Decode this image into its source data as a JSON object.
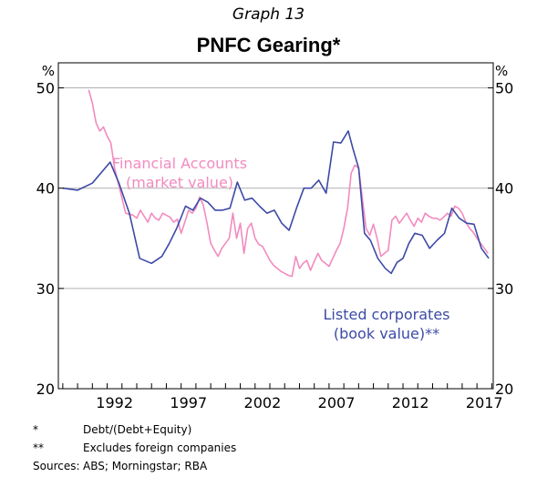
{
  "header": {
    "graph_label": "Graph 13",
    "title": "PNFC Gearing*"
  },
  "chart_data": {
    "type": "line",
    "title": "PNFC Gearing*",
    "y_unit_left": "%",
    "y_unit_right": "%",
    "ylim": [
      20,
      52.5
    ],
    "yticks": [
      20,
      30,
      40,
      50
    ],
    "xlim": [
      1988.7,
      2018.1
    ],
    "xticks": [
      1992,
      1997,
      2002,
      2007,
      2012,
      2017
    ],
    "grid": true,
    "annotations": [
      {
        "lines": [
          "Financial Accounts",
          "(market value)"
        ],
        "color": "#f28bbf"
      },
      {
        "lines": [
          "Listed corporates",
          "(book value)**"
        ],
        "color": "#3d4aa6"
      }
    ],
    "series": [
      {
        "name": "Financial Accounts (market value)",
        "color": "#f28bbf",
        "x": [
          1990.75,
          1991.0,
          1991.25,
          1991.5,
          1991.75,
          1992.0,
          1992.25,
          1992.5,
          1992.75,
          1993.0,
          1993.25,
          1993.5,
          1993.75,
          1994.0,
          1994.25,
          1994.5,
          1994.75,
          1995.0,
          1995.25,
          1995.5,
          1995.75,
          1996.0,
          1996.25,
          1996.5,
          1996.75,
          1997.0,
          1997.25,
          1997.5,
          1997.75,
          1998.0,
          1998.25,
          1998.5,
          1998.75,
          1999.0,
          1999.25,
          1999.5,
          1999.75,
          2000.0,
          2000.25,
          2000.5,
          2000.75,
          2001.0,
          2001.25,
          2001.5,
          2001.75,
          2002.0,
          2002.25,
          2002.5,
          2002.75,
          2003.0,
          2003.25,
          2003.5,
          2003.75,
          2004.0,
          2004.25,
          2004.5,
          2004.75,
          2005.0,
          2005.25,
          2005.5,
          2005.75,
          2006.0,
          2006.25,
          2006.5,
          2006.75,
          2007.0,
          2007.25,
          2007.5,
          2007.75,
          2008.0,
          2008.25,
          2008.5,
          2008.75,
          2009.0,
          2009.25,
          2009.5,
          2009.75,
          2010.0,
          2010.25,
          2010.5,
          2010.75,
          2011.0,
          2011.25,
          2011.5,
          2011.75,
          2012.0,
          2012.25,
          2012.5,
          2012.75,
          2013.0,
          2013.25,
          2013.5,
          2013.75,
          2014.0,
          2014.25,
          2014.5,
          2014.75,
          2015.0,
          2015.25,
          2015.5,
          2015.75,
          2016.0,
          2016.25,
          2016.5,
          2016.75,
          2017.0,
          2017.25,
          2017.5,
          2017.75
        ],
        "values": [
          49.8,
          48.5,
          46.5,
          45.7,
          46.1,
          45.2,
          44.5,
          42.0,
          40.5,
          39.0,
          37.5,
          37.4,
          37.3,
          37.0,
          37.8,
          37.2,
          36.6,
          37.5,
          37.0,
          36.8,
          37.5,
          37.3,
          37.1,
          36.6,
          36.9,
          35.5,
          36.6,
          37.8,
          37.5,
          38.0,
          39.1,
          38.3,
          36.5,
          34.5,
          33.8,
          33.2,
          34.0,
          34.5,
          35.0,
          37.5,
          35.0,
          36.5,
          33.5,
          36.0,
          36.5,
          35.0,
          34.4,
          34.2,
          33.5,
          32.8,
          32.3,
          32.0,
          31.7,
          31.5,
          31.3,
          31.2,
          33.2,
          32.0,
          32.5,
          32.8,
          31.8,
          32.7,
          33.5,
          32.8,
          32.5,
          32.2,
          33.0,
          33.8,
          34.5,
          36.0,
          38.0,
          41.5,
          42.3,
          42.0,
          39.0,
          36.0,
          35.3,
          36.4,
          35.0,
          33.2,
          33.5,
          33.8,
          36.8,
          37.2,
          36.5,
          37.0,
          37.5,
          36.8,
          36.2,
          37.0,
          36.6,
          37.5,
          37.2,
          37.0,
          37.0,
          36.8,
          37.1,
          37.5,
          37.2,
          38.2,
          38.0,
          37.5,
          36.6,
          36.0,
          35.6,
          35.0,
          34.5,
          34.0,
          33.5
        ]
      },
      {
        "name": "Listed corporates (book value)**",
        "color": "#3d4aa6",
        "x": [
          1989.0,
          1990.0,
          1991.0,
          1992.2,
          1992.8,
          1993.5,
          1994.2,
          1995.0,
          1995.7,
          1996.2,
          1996.7,
          1997.3,
          1997.8,
          1998.3,
          1998.8,
          1999.3,
          1999.8,
          2000.3,
          2000.8,
          2001.3,
          2001.8,
          2002.3,
          2002.8,
          2003.3,
          2003.8,
          2004.3,
          2004.8,
          2005.3,
          2005.8,
          2006.3,
          2006.8,
          2007.3,
          2007.8,
          2008.3,
          2008.6,
          2009.0,
          2009.4,
          2009.8,
          2010.3,
          2010.8,
          2011.2,
          2011.6,
          2012.0,
          2012.4,
          2012.8,
          2013.3,
          2013.8,
          2014.3,
          2014.8,
          2015.3,
          2015.8,
          2016.3,
          2016.8,
          2017.3,
          2017.8
        ],
        "values": [
          40.0,
          39.8,
          40.5,
          42.6,
          40.5,
          37.5,
          33.0,
          32.5,
          33.2,
          34.5,
          36.0,
          38.2,
          37.8,
          39.0,
          38.6,
          37.8,
          37.8,
          38.0,
          40.6,
          38.8,
          39.0,
          38.2,
          37.5,
          37.8,
          36.5,
          35.8,
          38.0,
          40.0,
          40.0,
          40.8,
          39.5,
          44.6,
          44.5,
          45.7,
          44.0,
          42.0,
          35.5,
          34.8,
          33.0,
          32.0,
          31.5,
          32.6,
          33.0,
          34.5,
          35.5,
          35.3,
          34.0,
          34.8,
          35.5,
          38.0,
          37.0,
          36.5,
          36.4,
          34.0,
          33.0
        ]
      }
    ]
  },
  "notes": [
    {
      "symbol": "*",
      "text": "Debt/(Debt+Equity)"
    },
    {
      "symbol": "**",
      "text": "Excludes foreign companies"
    }
  ],
  "sources": {
    "label": "Sources:",
    "text": "ABS; Morningstar; RBA"
  }
}
